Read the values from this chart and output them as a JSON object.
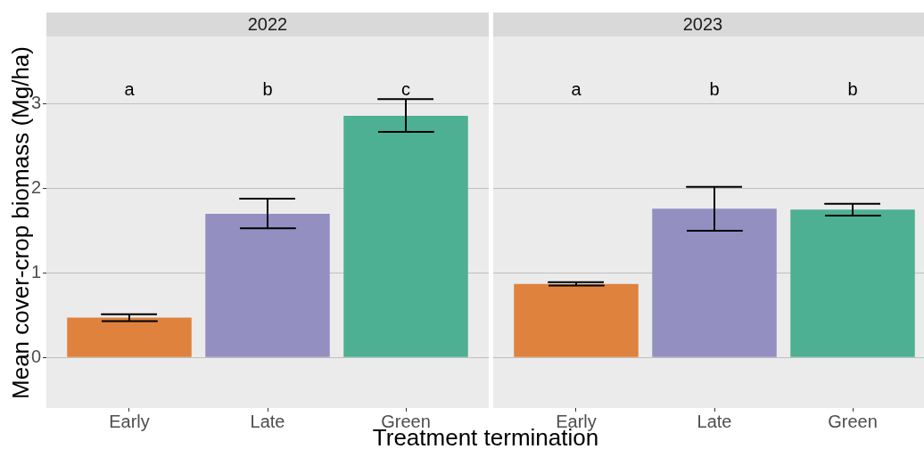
{
  "chart_data": [
    {
      "type": "bar",
      "title": "2022",
      "xlabel": "Treatment termination",
      "ylabel": "Mean cover-crop biomass (Mg/ha)",
      "categories": [
        "Early",
        "Late",
        "Green"
      ],
      "values": [
        0.47,
        1.7,
        2.86
      ],
      "colors": [
        "#df823e",
        "#948fc1",
        "#4db092"
      ],
      "errors": [
        [
          0.43,
          0.51
        ],
        [
          1.53,
          1.88
        ],
        [
          2.67,
          3.06
        ]
      ],
      "ylim": [
        -0.6,
        3.8
      ],
      "yticks": [
        0,
        1,
        2,
        3
      ],
      "grid": "y",
      "annotations": [
        "a",
        "b",
        "c"
      ]
    },
    {
      "type": "bar",
      "title": "2023",
      "categories": [
        "Early",
        "Late",
        "Green"
      ],
      "values": [
        0.87,
        1.76,
        1.75
      ],
      "colors": [
        "#df823e",
        "#948fc1",
        "#4db092"
      ],
      "errors": [
        [
          0.85,
          0.89
        ],
        [
          1.5,
          2.02
        ],
        [
          1.68,
          1.82
        ]
      ],
      "ylim": [
        -0.6,
        3.8
      ],
      "yticks": [
        0,
        1,
        2,
        3
      ],
      "grid": "y",
      "tick_labels": "x",
      "annotations": [
        "a",
        "b",
        "b"
      ]
    }
  ]
}
